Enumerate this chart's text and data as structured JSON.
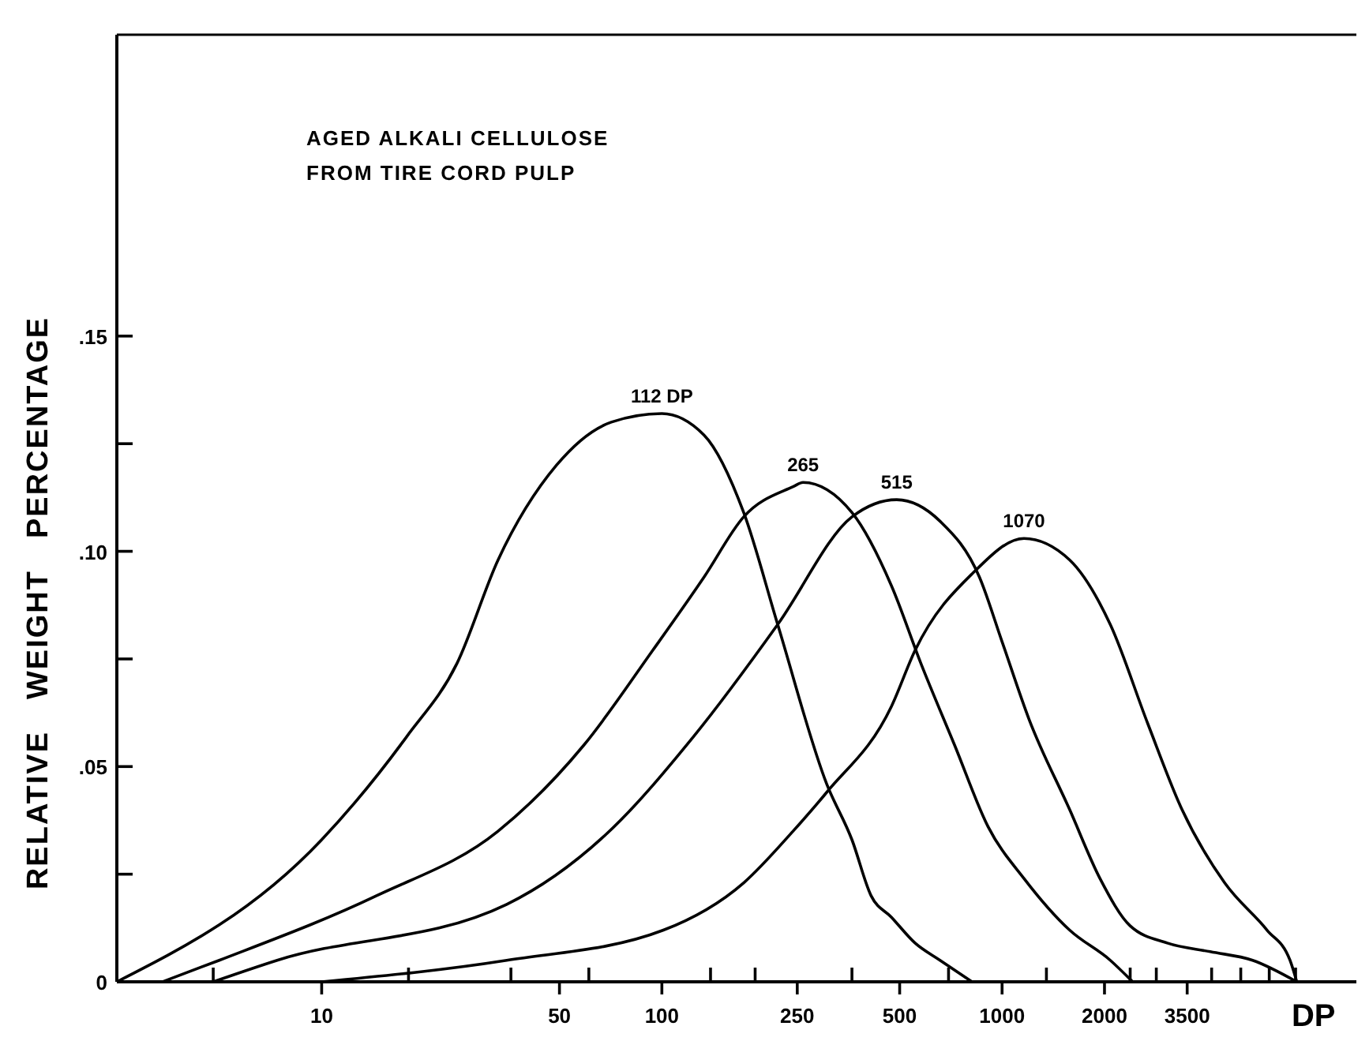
{
  "chart_data": {
    "type": "line",
    "title": "AGED ALKALI CELLULOSE",
    "subtitle": "FROM TIRE CORD PULP",
    "xlabel": "DP",
    "ylabel": "RELATIVE WEIGHT PERCENTAGE",
    "log": "x",
    "xlim": [
      2.5,
      11000
    ],
    "ylim": [
      0,
      0.22
    ],
    "xticks": [
      {
        "value": 4.8,
        "label": null
      },
      {
        "value": 10,
        "label": "10"
      },
      {
        "value": 18,
        "label": null
      },
      {
        "value": 36,
        "label": null
      },
      {
        "value": 50,
        "label": "50"
      },
      {
        "value": 61,
        "label": null
      },
      {
        "value": 100,
        "label": "100"
      },
      {
        "value": 139,
        "label": null
      },
      {
        "value": 188,
        "label": null
      },
      {
        "value": 250,
        "label": "250"
      },
      {
        "value": 362,
        "label": null
      },
      {
        "value": 500,
        "label": "500"
      },
      {
        "value": 696,
        "label": null
      },
      {
        "value": 1000,
        "label": "1000"
      },
      {
        "value": 1350,
        "label": null
      },
      {
        "value": 2000,
        "label": "2000"
      },
      {
        "value": 2380,
        "label": null
      },
      {
        "value": 2840,
        "label": null
      },
      {
        "value": 3500,
        "label": "3500"
      },
      {
        "value": 4130,
        "label": null
      },
      {
        "value": 5030,
        "label": null
      },
      {
        "value": 6100,
        "label": null
      },
      {
        "value": 7290,
        "label": null
      }
    ],
    "yticks": [
      {
        "value": 0,
        "label": "0"
      },
      {
        "value": 0.025,
        "label": null
      },
      {
        "value": 0.05,
        "label": ".05"
      },
      {
        "value": 0.075,
        "label": null
      },
      {
        "value": 0.1,
        "label": ".10"
      },
      {
        "value": 0.125,
        "label": null
      },
      {
        "value": 0.15,
        "label": ".15"
      }
    ],
    "grid": false,
    "marker": "none",
    "line_style": "solid",
    "series": [
      {
        "name": "112 DP",
        "color": "#000000",
        "x": [
          2.5,
          10,
          17.8,
          25,
          33,
          49,
          71,
          100,
          133,
          174,
          219,
          305,
          362,
          412,
          473,
          555,
          657,
          816
        ],
        "values": [
          0,
          0.033,
          0.057,
          0.074,
          0.098,
          0.12,
          0.13,
          0.132,
          0.127,
          0.109,
          0.083,
          0.046,
          0.033,
          0.02,
          0.015,
          0.009,
          0.005,
          0
        ]
      },
      {
        "name": "265",
        "color": "#000000",
        "x": [
          3.4,
          5,
          14.5,
          33,
          59,
          94,
          133,
          174,
          243,
          260,
          362,
          473,
          577,
          725,
          910,
          1160,
          1580,
          2080,
          2420
        ],
        "values": [
          0,
          0.005,
          0.02,
          0.035,
          0.055,
          0.077,
          0.094,
          0.108,
          0.115,
          0.116,
          0.109,
          0.092,
          0.074,
          0.055,
          0.036,
          0.024,
          0.012,
          0.005,
          0
        ]
      },
      {
        "name": "515",
        "color": "#000000",
        "x": [
          4.8,
          7.4,
          35,
          68,
          124,
          219,
          362,
          490,
          657,
          858,
          1000,
          1200,
          1580,
          1940,
          2380,
          3060,
          4090,
          5450,
          7350
        ],
        "values": [
          0,
          0.005,
          0.018,
          0.034,
          0.057,
          0.083,
          0.108,
          0.112,
          0.107,
          0.094,
          0.079,
          0.061,
          0.04,
          0.024,
          0.013,
          0.009,
          0.007,
          0.005,
          0
        ]
      },
      {
        "name": "1070",
        "color": "#000000",
        "x": [
          10,
          35,
          101,
          174,
          243,
          305,
          473,
          555,
          822,
          1160,
          1580,
          2080,
          2680,
          3380,
          4510,
          6010,
          7020,
          7350
        ],
        "values": [
          0,
          0.005,
          0.012,
          0.023,
          0.035,
          0.044,
          0.064,
          0.077,
          0.095,
          0.103,
          0.098,
          0.083,
          0.06,
          0.04,
          0.023,
          0.012,
          0.005,
          0
        ]
      }
    ]
  }
}
